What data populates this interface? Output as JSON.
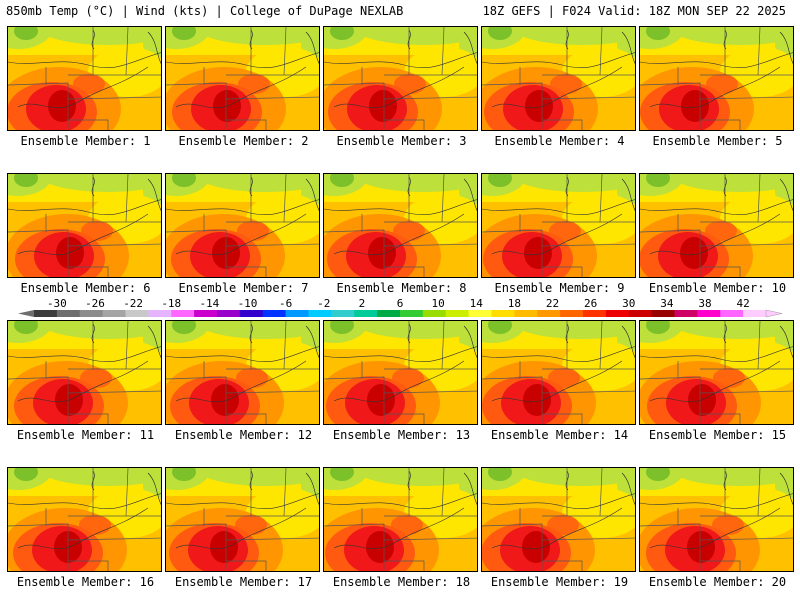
{
  "header": {
    "left": "850mb Temp (°C) | Wind (kts) | College of DuPage NEXLAB",
    "right": "18Z GEFS | F024 Valid: 18Z MON SEP 22 2025"
  },
  "panels": [
    {
      "label": "Ensemble Member: 1"
    },
    {
      "label": "Ensemble Member: 2"
    },
    {
      "label": "Ensemble Member: 3"
    },
    {
      "label": "Ensemble Member: 4"
    },
    {
      "label": "Ensemble Member: 5"
    },
    {
      "label": "Ensemble Member: 6"
    },
    {
      "label": "Ensemble Member: 7"
    },
    {
      "label": "Ensemble Member: 8"
    },
    {
      "label": "Ensemble Member: 9"
    },
    {
      "label": "Ensemble Member: 10"
    },
    {
      "label": "Ensemble Member: 11"
    },
    {
      "label": "Ensemble Member: 12"
    },
    {
      "label": "Ensemble Member: 13"
    },
    {
      "label": "Ensemble Member: 14"
    },
    {
      "label": "Ensemble Member: 15"
    },
    {
      "label": "Ensemble Member: 16"
    },
    {
      "label": "Ensemble Member: 17"
    },
    {
      "label": "Ensemble Member: 18"
    },
    {
      "label": "Ensemble Member: 19"
    },
    {
      "label": "Ensemble Member: 20"
    }
  ],
  "colorbar": {
    "tick_labels": [
      "-30",
      "-26",
      "-22",
      "-18",
      "-14",
      "-10",
      "-6",
      "-2",
      "2",
      "6",
      "10",
      "14",
      "18",
      "22",
      "26",
      "30",
      "34",
      "38",
      "42"
    ],
    "colors": [
      "#3c3c3c",
      "#6e6e6e",
      "#8c8c8c",
      "#a5a5a5",
      "#c8c8c8",
      "#e6b4ff",
      "#ff66ff",
      "#cc00cc",
      "#9900cc",
      "#3300cc",
      "#0033ff",
      "#0099ff",
      "#00ccff",
      "#33cccc",
      "#00cc99",
      "#00aa44",
      "#33cc33",
      "#99dd00",
      "#ccee00",
      "#ffff33",
      "#ffdd00",
      "#ffbb00",
      "#ff9900",
      "#ff6600",
      "#ff3300",
      "#ee0000",
      "#cc0000",
      "#990000",
      "#cc0066",
      "#ff00cc",
      "#ff66ff",
      "#ffccff"
    ]
  },
  "map_colors": {
    "light_green": "#bde03a",
    "green": "#7cc12a",
    "yellow": "#ffe600",
    "gold": "#ffc000",
    "orange": "#ff9500",
    "dark_orange": "#ff5a10",
    "red": "#f01818",
    "dark_red": "#c80000"
  }
}
